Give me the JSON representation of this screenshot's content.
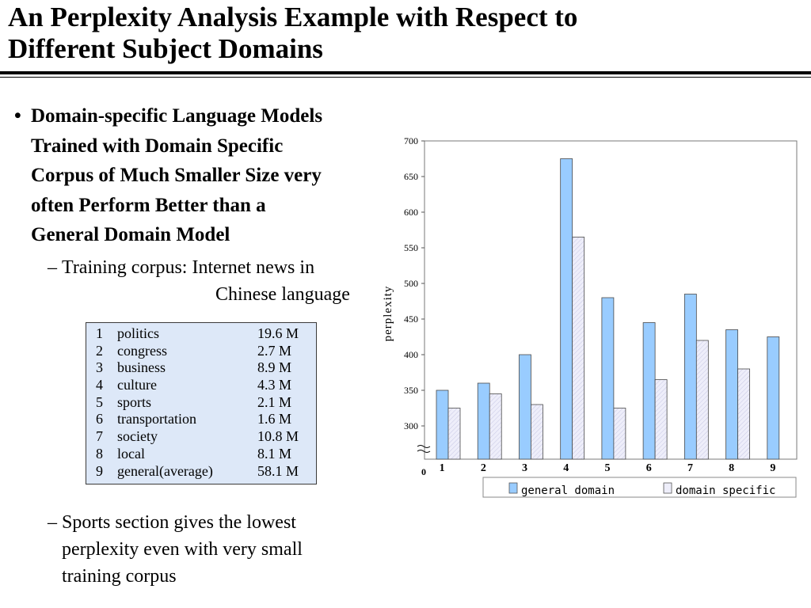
{
  "slide": {
    "title": [
      "An Perplexity Analysis Example with Respect to",
      "Different Subject Domains"
    ],
    "bullet": {
      "marker": "•",
      "lines": [
        "Domain-specific Language Models",
        "Trained with Domain Specific",
        "Corpus of Much Smaller Size very",
        "often Perform Better than a",
        "General Domain Model"
      ]
    },
    "sub1": {
      "marker": "–",
      "line1": "Training corpus: Internet news in",
      "line2": "Chinese language"
    },
    "sub2": {
      "marker": "–",
      "line1": "Sports section gives the lowest",
      "line2": "perplexity even with very small",
      "line3": "training corpus"
    },
    "corpus_table": [
      {
        "num": "1",
        "domain": "politics",
        "size": "19.6 M"
      },
      {
        "num": "2",
        "domain": "congress",
        "size": "2.7 M"
      },
      {
        "num": "3",
        "domain": "business",
        "size": "8.9 M"
      },
      {
        "num": "4",
        "domain": "culture",
        "size": "4.3 M"
      },
      {
        "num": "5",
        "domain": "sports",
        "size": "2.1 M"
      },
      {
        "num": "6",
        "domain": "transportation",
        "size": "1.6 M"
      },
      {
        "num": "7",
        "domain": "society",
        "size": "10.8 M"
      },
      {
        "num": "8",
        "domain": "local",
        "size": "8.1 M"
      },
      {
        "num": "9",
        "domain": "general(average)",
        "size": "58.1 M"
      }
    ]
  },
  "chart_data": {
    "type": "bar",
    "ylabel": "perplexity",
    "xlabel": "",
    "categories": [
      "1",
      "2",
      "3",
      "4",
      "5",
      "6",
      "7",
      "8",
      "9"
    ],
    "series": [
      {
        "name": "general domain",
        "values": [
          350,
          360,
          400,
          675,
          480,
          445,
          485,
          435,
          425
        ],
        "color": "#99ccff"
      },
      {
        "name": "domain specific",
        "values": [
          325,
          345,
          330,
          565,
          325,
          365,
          420,
          380,
          null
        ],
        "color": "#eeeefa"
      }
    ],
    "ylim": [
      300,
      700
    ],
    "yticks": [
      300,
      350,
      400,
      450,
      500,
      550,
      600,
      650,
      700
    ],
    "axis_break": true,
    "zero_label": "0",
    "grid": false,
    "legend": "bottom"
  }
}
